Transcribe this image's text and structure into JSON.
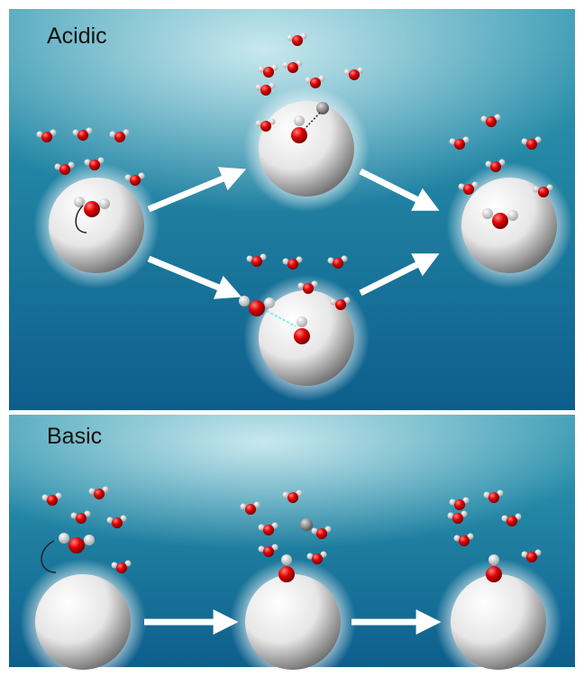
{
  "panels": [
    {
      "label": "Acidic"
    },
    {
      "label": "Basic"
    }
  ]
}
